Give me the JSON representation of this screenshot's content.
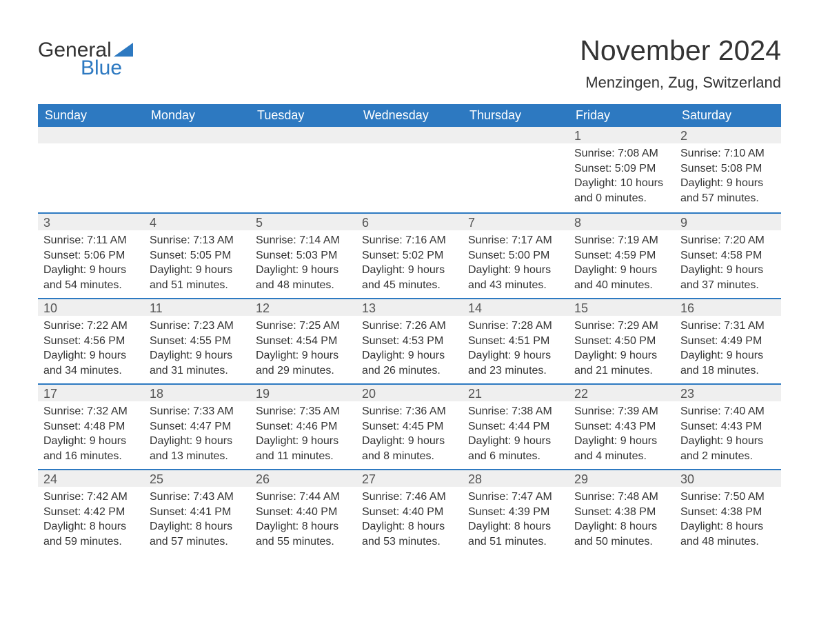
{
  "logo": {
    "text1": "General",
    "text2": "Blue",
    "accent_color": "#2d79c1"
  },
  "title": "November 2024",
  "location": "Menzingen, Zug, Switzerland",
  "colors": {
    "header_bg": "#2d79c1",
    "header_text": "#ffffff",
    "date_bar_bg": "#efefef",
    "body_text": "#333333",
    "week_border": "#2d79c1"
  },
  "day_names": [
    "Sunday",
    "Monday",
    "Tuesday",
    "Wednesday",
    "Thursday",
    "Friday",
    "Saturday"
  ],
  "weeks": [
    [
      null,
      null,
      null,
      null,
      null,
      {
        "date": "1",
        "sunrise": "Sunrise: 7:08 AM",
        "sunset": "Sunset: 5:09 PM",
        "daylight1": "Daylight: 10 hours",
        "daylight2": "and 0 minutes."
      },
      {
        "date": "2",
        "sunrise": "Sunrise: 7:10 AM",
        "sunset": "Sunset: 5:08 PM",
        "daylight1": "Daylight: 9 hours",
        "daylight2": "and 57 minutes."
      }
    ],
    [
      {
        "date": "3",
        "sunrise": "Sunrise: 7:11 AM",
        "sunset": "Sunset: 5:06 PM",
        "daylight1": "Daylight: 9 hours",
        "daylight2": "and 54 minutes."
      },
      {
        "date": "4",
        "sunrise": "Sunrise: 7:13 AM",
        "sunset": "Sunset: 5:05 PM",
        "daylight1": "Daylight: 9 hours",
        "daylight2": "and 51 minutes."
      },
      {
        "date": "5",
        "sunrise": "Sunrise: 7:14 AM",
        "sunset": "Sunset: 5:03 PM",
        "daylight1": "Daylight: 9 hours",
        "daylight2": "and 48 minutes."
      },
      {
        "date": "6",
        "sunrise": "Sunrise: 7:16 AM",
        "sunset": "Sunset: 5:02 PM",
        "daylight1": "Daylight: 9 hours",
        "daylight2": "and 45 minutes."
      },
      {
        "date": "7",
        "sunrise": "Sunrise: 7:17 AM",
        "sunset": "Sunset: 5:00 PM",
        "daylight1": "Daylight: 9 hours",
        "daylight2": "and 43 minutes."
      },
      {
        "date": "8",
        "sunrise": "Sunrise: 7:19 AM",
        "sunset": "Sunset: 4:59 PM",
        "daylight1": "Daylight: 9 hours",
        "daylight2": "and 40 minutes."
      },
      {
        "date": "9",
        "sunrise": "Sunrise: 7:20 AM",
        "sunset": "Sunset: 4:58 PM",
        "daylight1": "Daylight: 9 hours",
        "daylight2": "and 37 minutes."
      }
    ],
    [
      {
        "date": "10",
        "sunrise": "Sunrise: 7:22 AM",
        "sunset": "Sunset: 4:56 PM",
        "daylight1": "Daylight: 9 hours",
        "daylight2": "and 34 minutes."
      },
      {
        "date": "11",
        "sunrise": "Sunrise: 7:23 AM",
        "sunset": "Sunset: 4:55 PM",
        "daylight1": "Daylight: 9 hours",
        "daylight2": "and 31 minutes."
      },
      {
        "date": "12",
        "sunrise": "Sunrise: 7:25 AM",
        "sunset": "Sunset: 4:54 PM",
        "daylight1": "Daylight: 9 hours",
        "daylight2": "and 29 minutes."
      },
      {
        "date": "13",
        "sunrise": "Sunrise: 7:26 AM",
        "sunset": "Sunset: 4:53 PM",
        "daylight1": "Daylight: 9 hours",
        "daylight2": "and 26 minutes."
      },
      {
        "date": "14",
        "sunrise": "Sunrise: 7:28 AM",
        "sunset": "Sunset: 4:51 PM",
        "daylight1": "Daylight: 9 hours",
        "daylight2": "and 23 minutes."
      },
      {
        "date": "15",
        "sunrise": "Sunrise: 7:29 AM",
        "sunset": "Sunset: 4:50 PM",
        "daylight1": "Daylight: 9 hours",
        "daylight2": "and 21 minutes."
      },
      {
        "date": "16",
        "sunrise": "Sunrise: 7:31 AM",
        "sunset": "Sunset: 4:49 PM",
        "daylight1": "Daylight: 9 hours",
        "daylight2": "and 18 minutes."
      }
    ],
    [
      {
        "date": "17",
        "sunrise": "Sunrise: 7:32 AM",
        "sunset": "Sunset: 4:48 PM",
        "daylight1": "Daylight: 9 hours",
        "daylight2": "and 16 minutes."
      },
      {
        "date": "18",
        "sunrise": "Sunrise: 7:33 AM",
        "sunset": "Sunset: 4:47 PM",
        "daylight1": "Daylight: 9 hours",
        "daylight2": "and 13 minutes."
      },
      {
        "date": "19",
        "sunrise": "Sunrise: 7:35 AM",
        "sunset": "Sunset: 4:46 PM",
        "daylight1": "Daylight: 9 hours",
        "daylight2": "and 11 minutes."
      },
      {
        "date": "20",
        "sunrise": "Sunrise: 7:36 AM",
        "sunset": "Sunset: 4:45 PM",
        "daylight1": "Daylight: 9 hours",
        "daylight2": "and 8 minutes."
      },
      {
        "date": "21",
        "sunrise": "Sunrise: 7:38 AM",
        "sunset": "Sunset: 4:44 PM",
        "daylight1": "Daylight: 9 hours",
        "daylight2": "and 6 minutes."
      },
      {
        "date": "22",
        "sunrise": "Sunrise: 7:39 AM",
        "sunset": "Sunset: 4:43 PM",
        "daylight1": "Daylight: 9 hours",
        "daylight2": "and 4 minutes."
      },
      {
        "date": "23",
        "sunrise": "Sunrise: 7:40 AM",
        "sunset": "Sunset: 4:43 PM",
        "daylight1": "Daylight: 9 hours",
        "daylight2": "and 2 minutes."
      }
    ],
    [
      {
        "date": "24",
        "sunrise": "Sunrise: 7:42 AM",
        "sunset": "Sunset: 4:42 PM",
        "daylight1": "Daylight: 8 hours",
        "daylight2": "and 59 minutes."
      },
      {
        "date": "25",
        "sunrise": "Sunrise: 7:43 AM",
        "sunset": "Sunset: 4:41 PM",
        "daylight1": "Daylight: 8 hours",
        "daylight2": "and 57 minutes."
      },
      {
        "date": "26",
        "sunrise": "Sunrise: 7:44 AM",
        "sunset": "Sunset: 4:40 PM",
        "daylight1": "Daylight: 8 hours",
        "daylight2": "and 55 minutes."
      },
      {
        "date": "27",
        "sunrise": "Sunrise: 7:46 AM",
        "sunset": "Sunset: 4:40 PM",
        "daylight1": "Daylight: 8 hours",
        "daylight2": "and 53 minutes."
      },
      {
        "date": "28",
        "sunrise": "Sunrise: 7:47 AM",
        "sunset": "Sunset: 4:39 PM",
        "daylight1": "Daylight: 8 hours",
        "daylight2": "and 51 minutes."
      },
      {
        "date": "29",
        "sunrise": "Sunrise: 7:48 AM",
        "sunset": "Sunset: 4:38 PM",
        "daylight1": "Daylight: 8 hours",
        "daylight2": "and 50 minutes."
      },
      {
        "date": "30",
        "sunrise": "Sunrise: 7:50 AM",
        "sunset": "Sunset: 4:38 PM",
        "daylight1": "Daylight: 8 hours",
        "daylight2": "and 48 minutes."
      }
    ]
  ]
}
